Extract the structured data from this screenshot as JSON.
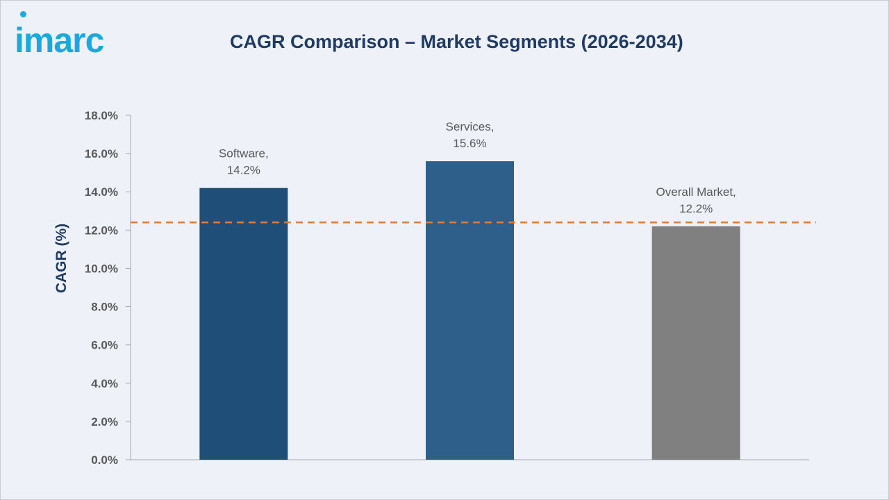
{
  "brand": {
    "logo_text": "imarc",
    "logo_color": "#1ba8e0"
  },
  "chart_data": {
    "type": "bar",
    "title": "CAGR Comparison – Market Segments (2026-2034)",
    "xlabel": "",
    "ylabel": "CAGR (%)",
    "ylim": [
      0,
      18
    ],
    "yticks": [
      0,
      2,
      4,
      6,
      8,
      10,
      12,
      14,
      16,
      18
    ],
    "ytick_labels": [
      "0.0%",
      "2.0%",
      "4.0%",
      "6.0%",
      "8.0%",
      "10.0%",
      "12.0%",
      "14.0%",
      "16.0%",
      "18.0%"
    ],
    "categories": [
      "Software",
      "Services",
      "Overall Market"
    ],
    "values": [
      14.2,
      15.6,
      12.2
    ],
    "data_labels": [
      [
        "Software,",
        "14.2%"
      ],
      [
        "Services,",
        "15.6%"
      ],
      [
        "Overall Market,",
        "12.2%"
      ]
    ],
    "bar_colors": [
      "#1f4e79",
      "#2e5f8a",
      "#808080"
    ],
    "reference_line": {
      "value": 12.4,
      "style": "dashed",
      "color": "#e07b39"
    },
    "grid": false,
    "legend": "none"
  }
}
